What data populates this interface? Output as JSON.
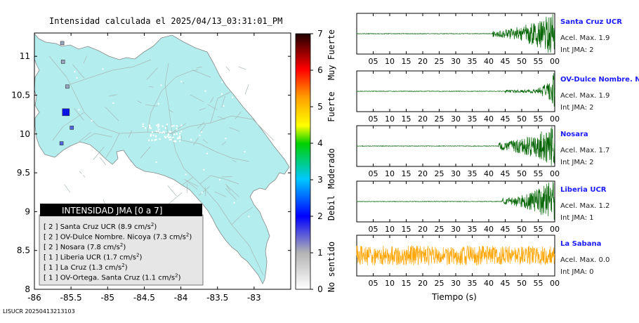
{
  "map": {
    "title": "Intensidad calculada el 2025/04/13_03:31:01_PM",
    "footer_id": "LISUCR 20250413213103",
    "lon_ticks": [
      "-86",
      "-85.5",
      "-85",
      "-84.5",
      "-84",
      "-83.5",
      "-83"
    ],
    "lat_ticks": [
      "11",
      "10.5",
      "10",
      "9.5",
      "9",
      "8.5",
      "8"
    ],
    "land_color": "#b3eded",
    "legend": {
      "title": "INTENSIDAD JMA [0 a 7]",
      "sup": "2",
      "entries": [
        {
          "level": "[ 2 ]",
          "text": "Santa Cruz UCR (8.9 cm/s",
          "close": ")"
        },
        {
          "level": "[ 2 ]",
          "text": "OV-Dulce Nombre. Nicoya (7.3 cm/s",
          "close": ")"
        },
        {
          "level": "[ 2 ]",
          "text": "Nosara (7.8 cm/s",
          "close": ")"
        },
        {
          "level": "[ 1 ]",
          "text": "Liberia UCR (1.7 cm/s",
          "close": ")"
        },
        {
          "level": "[ 1 ]",
          "text": "La Cruz (1.3 cm/s",
          "close": ")"
        },
        {
          "level": "[ 1 ]",
          "text": "OV-Ortega. Santa Cruz (1.1 cm/s",
          "close": ")"
        }
      ]
    },
    "stations": [
      {
        "lon": -85.57,
        "lat": 10.28,
        "intensity": 2
      },
      {
        "lon": -85.49,
        "lat": 10.08,
        "intensity": 1
      },
      {
        "lon": -85.63,
        "lat": 9.88,
        "intensity": 1
      },
      {
        "lon": -85.55,
        "lat": 10.61,
        "intensity": 0
      },
      {
        "lon": -85.61,
        "lat": 10.93,
        "intensity": 0
      },
      {
        "lon": -85.62,
        "lat": 11.17,
        "intensity": 0
      }
    ]
  },
  "colorbar": {
    "ticks": [
      "0",
      "1",
      "2",
      "3",
      "4",
      "5",
      "6",
      "7"
    ],
    "labels": [
      "No sentido",
      "Debil",
      "Moderado",
      "Fuerte",
      "Muy Fuerte"
    ]
  },
  "chart_data": {
    "type": "line",
    "xlabel": "Tiempo (s)",
    "x_ticks": [
      "05",
      "10",
      "15",
      "20",
      "25",
      "30",
      "35",
      "40",
      "45",
      "50",
      "55",
      "00"
    ],
    "series": [
      {
        "name": "Santa Cruz UCR",
        "accel_label": "Acel. Max. 1.9",
        "jma_label": "Int JMA: 2",
        "color": "#006400",
        "onset": 41,
        "envelope": "growing"
      },
      {
        "name": "OV-Dulce Nombre. Nicoya",
        "accel_label": "Acel. Max. 1.9",
        "jma_label": "Int JMA: 2",
        "color": "#006400",
        "onset": 45,
        "envelope": "late"
      },
      {
        "name": "Nosara",
        "accel_label": "Acel. Max. 1.7",
        "jma_label": "Int JMA: 2",
        "color": "#006400",
        "onset": 43,
        "envelope": "burst"
      },
      {
        "name": "Liberia UCR",
        "accel_label": "Acel. Max. 1.2",
        "jma_label": "Int JMA: 1",
        "color": "#006400",
        "onset": 44,
        "envelope": "growing"
      },
      {
        "name": "La Sabana",
        "accel_label": "Acel. Max. 0.0",
        "jma_label": "Int JMA: 0",
        "color": "#ffa500",
        "onset": 0,
        "envelope": "noise"
      }
    ]
  }
}
